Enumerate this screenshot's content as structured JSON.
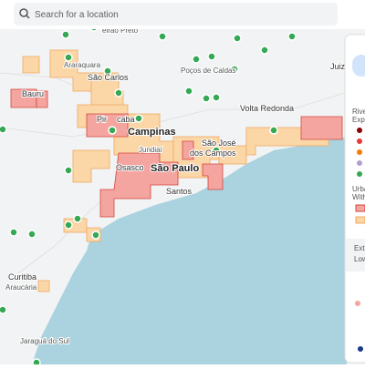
{
  "search": {
    "placeholder": "Search for a location"
  },
  "cities": [
    "eirão Preto",
    "Araraquara",
    "São Carlos",
    "Bauru",
    "Poços de Caldas",
    "Pir",
    "caba",
    "Campinas",
    "Jundiaí",
    "Osasco",
    "São Paulo",
    "Santos",
    "São José",
    "dos Campos",
    "Volta Redonda",
    "Juiz de",
    "Curitiba",
    "Araucária",
    "Jaraguá do Sul"
  ],
  "panel": {
    "items": [
      "Rive",
      "Expo",
      "Urba",
      "With",
      "Ext",
      "Low"
    ]
  }
}
